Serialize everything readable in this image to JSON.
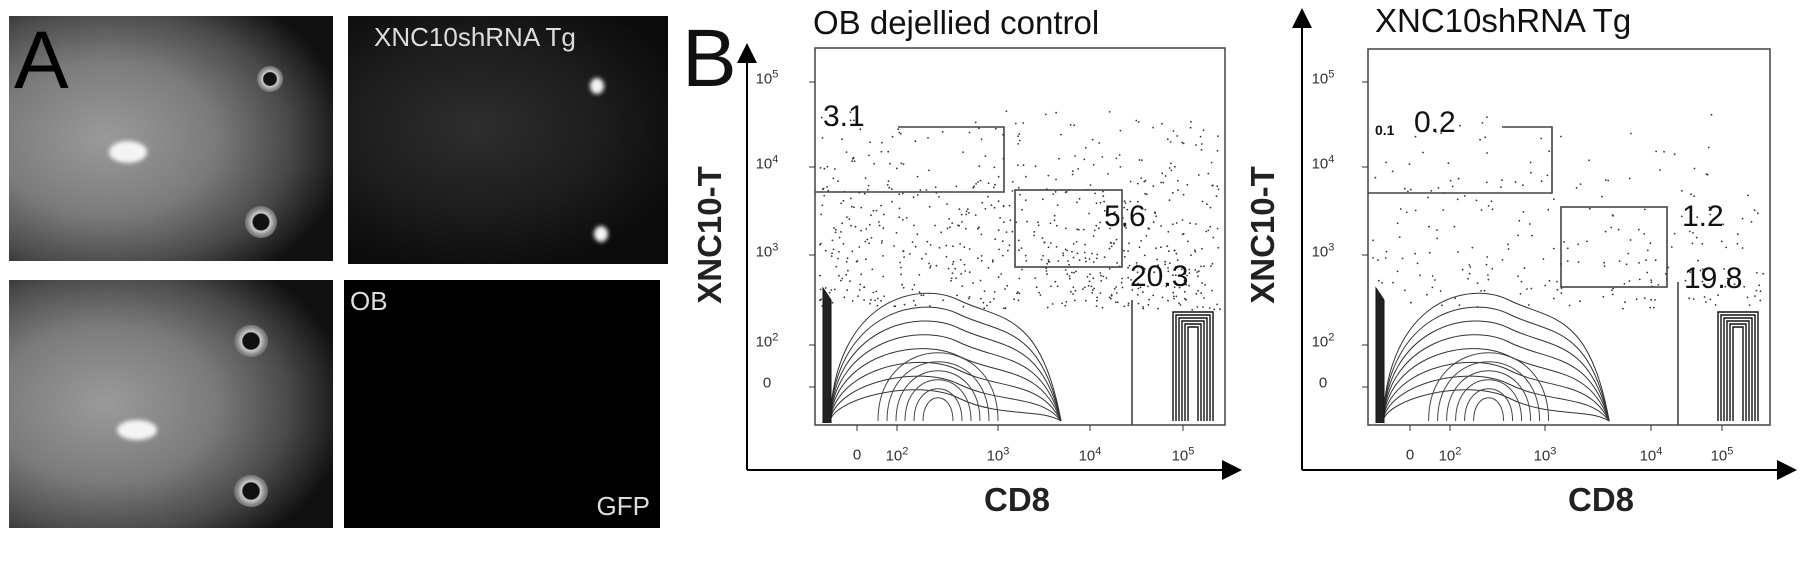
{
  "panel_a": {
    "label": "A",
    "top_right_caption": "XNC10shRNA Tg",
    "bottom_right_caption_top": "OB",
    "bottom_right_caption_bottom": "GFP"
  },
  "panel_b": {
    "label": "B"
  },
  "chart_data": [
    {
      "type": "scatter",
      "subtype": "flow cytometry contour plot with outliers",
      "title": "OB dejellied control",
      "xlabel": "CD8",
      "ylabel": "XNC10-T",
      "xscale": "biexponential",
      "yscale": "biexponential",
      "xticks": [
        "0",
        "10^2",
        "10^3",
        "10^4",
        "10^5"
      ],
      "yticks": [
        "0",
        "10^2",
        "10^3",
        "10^4",
        "10^5"
      ],
      "gates": [
        {
          "label": "3.1",
          "x_range": [
            "min",
            "10^3"
          ],
          "y_range": [
            "5x10^3",
            "3x10^4"
          ]
        },
        {
          "label": "5.6",
          "x_range": [
            "1.3x10^3",
            "2.5x10^4"
          ],
          "y_range": [
            "8x10^2",
            "5x10^3"
          ]
        },
        {
          "label": "20.3",
          "x_range": [
            "2.5x10^4",
            "max"
          ],
          "y_range": [
            "min",
            "3x10^2"
          ]
        }
      ]
    },
    {
      "type": "scatter",
      "subtype": "flow cytometry contour plot with outliers",
      "title": "XNC10shRNA Tg",
      "xlabel": "CD8",
      "ylabel": "XNC10-T",
      "xscale": "biexponential",
      "yscale": "biexponential",
      "xticks": [
        "0",
        "10^2",
        "10^3",
        "10^4",
        "10^5"
      ],
      "yticks": [
        "0",
        "10^2",
        "10^3",
        "10^4",
        "10^5"
      ],
      "gates": [
        {
          "label": "0.2",
          "extra_label": "0.1",
          "x_range": [
            "min",
            "10^3"
          ],
          "y_range": [
            "5x10^3",
            "3x10^4"
          ]
        },
        {
          "label": "1.2",
          "x_range": [
            "1.3x10^3",
            "2.5x10^4"
          ],
          "y_range": [
            "8x10^2",
            "5x10^3"
          ]
        },
        {
          "label": "19.8",
          "x_range": [
            "2.5x10^4",
            "max"
          ],
          "y_range": [
            "min",
            "3x10^2"
          ]
        }
      ]
    }
  ]
}
